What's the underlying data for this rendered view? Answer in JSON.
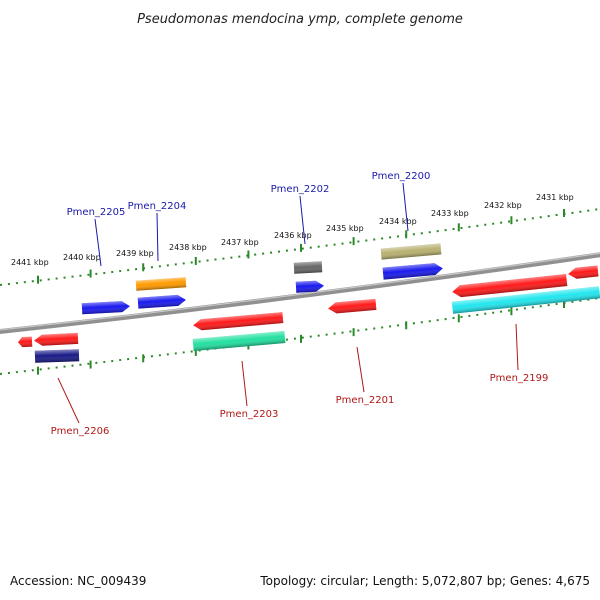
{
  "title": "Pseudomonas mendocina ymp, complete genome",
  "footer": {
    "accession": "Accession: NC_009439",
    "summary": "Topology: circular; Length: 5,072,807 bp; Genes: 4,675"
  },
  "colors": {
    "backbone": "#8a8a8a",
    "ticks": "#2a8a2a",
    "top_label": "#1a1aa8",
    "bottom_label": "#b01818"
  },
  "scale_labels": [
    "2441 kbp",
    "2440 kbp",
    "2439 kbp",
    "2438 kbp",
    "2437 kbp",
    "2436 kbp",
    "2435 kbp",
    "2434 kbp",
    "2433 kbp",
    "2432 kbp",
    "2431 kbp"
  ],
  "gene_labels": {
    "top": [
      "Pmen_2205",
      "Pmen_2204",
      "Pmen_2202",
      "Pmen_2200"
    ],
    "bottom": [
      "Pmen_2206",
      "Pmen_2203",
      "Pmen_2201",
      "Pmen_2199"
    ]
  },
  "features": [
    {
      "name": "gene-block-1",
      "color": "#ff9a00",
      "dir": "none"
    },
    {
      "name": "gene-block-2",
      "color": "#1a1aee",
      "dir": "right"
    },
    {
      "name": "gene-block-3",
      "color": "#1a1aee",
      "dir": "right"
    },
    {
      "name": "gene-block-4",
      "color": "#666666",
      "dir": "none"
    },
    {
      "name": "gene-block-5",
      "color": "#1a1aee",
      "dir": "right"
    },
    {
      "name": "gene-block-6",
      "color": "#b8b070",
      "dir": "none"
    },
    {
      "name": "gene-block-7",
      "color": "#1a1aee",
      "dir": "right"
    },
    {
      "name": "gene-block-8",
      "color": "#ff1a1a",
      "dir": "left"
    },
    {
      "name": "gene-block-9",
      "color": "#ff1a1a",
      "dir": "left"
    },
    {
      "name": "gene-block-10",
      "color": "#ff1a1a",
      "dir": "left"
    },
    {
      "name": "gene-block-11",
      "color": "#ff1a1a",
      "dir": "left"
    },
    {
      "name": "gene-block-12",
      "color": "#ff1a1a",
      "dir": "left"
    },
    {
      "name": "gene-block-13",
      "color": "#ff1a1a",
      "dir": "left"
    },
    {
      "name": "gene-block-14",
      "color": "#22e0a0",
      "dir": "none"
    },
    {
      "name": "gene-block-15",
      "color": "#1a1a88",
      "dir": "none"
    },
    {
      "name": "gene-block-16",
      "color": "#22e6ee",
      "dir": "none"
    }
  ]
}
